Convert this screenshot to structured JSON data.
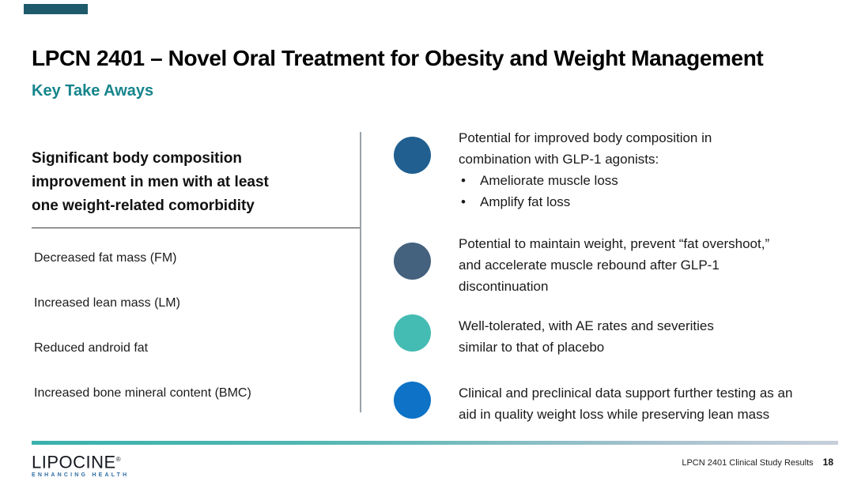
{
  "slide": {
    "title": "LPCN 2401 – Novel Oral Treatment for Obesity and Weight Management",
    "subtitle": "Key Take Aways",
    "subtitle_color": "#16858C",
    "accent_bar_color": "#1E5A6B"
  },
  "left_panel": {
    "heading_lines": [
      "Significant body composition",
      "improvement in men with at least",
      "one weight-related comorbidity"
    ],
    "items": [
      "Decreased fat mass (FM)",
      "Increased lean mass (LM)",
      "Reduced android fat",
      "Increased bone mineral content (BMC)"
    ]
  },
  "right_panel": {
    "bullets": [
      {
        "icon_color": "#205F90",
        "lines": [
          "Potential for improved body composition in",
          "combination with GLP-1 agonists:"
        ],
        "sub_items": [
          "Ameliorate muscle loss",
          "Amplify fat loss"
        ]
      },
      {
        "icon_color": "#44617E",
        "lines": [
          "Potential to maintain weight, prevent “fat overshoot,”",
          "and accelerate muscle rebound after GLP-1",
          "discontinuation"
        ]
      },
      {
        "icon_color": "#45BCB3",
        "lines": [
          "Well-tolerated, with AE rates and severities",
          "similar to that of placebo"
        ]
      },
      {
        "icon_color": "#0E72C6",
        "lines": [
          "Clinical and preclinical data support further testing as an",
          "aid in quality weight loss while preserving lean mass"
        ]
      }
    ]
  },
  "footer": {
    "rule_gradient_left": "#3AB1AC",
    "rule_gradient_right": "#C6CFDA",
    "logo_text": "LIPOCINE",
    "logo_registered_mark": "®",
    "logo_tagline": "ENHANCING HEALTH",
    "doc_title": "LPCN 2401 Clinical Study Results",
    "page_number": "18"
  }
}
